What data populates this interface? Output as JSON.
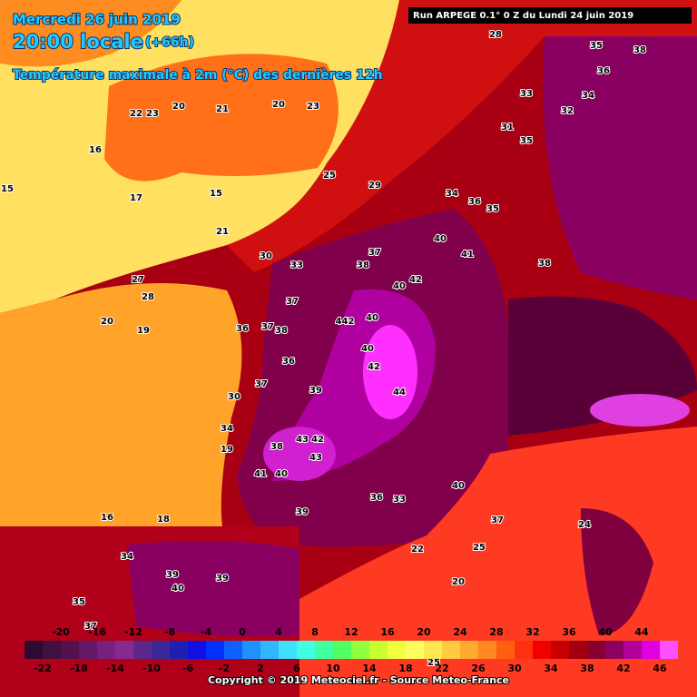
{
  "header": {
    "date": "Mercredi 26 juin 2019",
    "time": "20:00 locale",
    "lead": "(+66h)",
    "field": "Température maximale à 2m (°C) des dernières 12h",
    "run": "Run ARPEGE 0.1° 0 Z du Lundi 24 juin 2019"
  },
  "legend": {
    "labels_top": [
      "-20",
      "-16",
      "-12",
      "-8",
      "-4",
      "0",
      "4",
      "8",
      "12",
      "16",
      "20",
      "24",
      "28",
      "32",
      "36",
      "40",
      "44"
    ],
    "labels_bottom": [
      "-22",
      "-18",
      "-14",
      "-10",
      "-6",
      "-2",
      "2",
      "6",
      "10",
      "14",
      "18",
      "22",
      "26",
      "30",
      "34",
      "38",
      "42",
      "46"
    ],
    "colors": [
      "#2e0a30",
      "#40103f",
      "#52124f",
      "#641865",
      "#78207e",
      "#862a92",
      "#5a2888",
      "#3a2898",
      "#2020b0",
      "#1010e0",
      "#0030ff",
      "#1060ff",
      "#2090ff",
      "#30b8ff",
      "#40e0ff",
      "#40ffe0",
      "#40ffa0",
      "#50ff60",
      "#90ff40",
      "#c8ff30",
      "#f0ff40",
      "#ffff60",
      "#ffe850",
      "#ffcc40",
      "#ffaa30",
      "#ff8820",
      "#ff6010",
      "#ff3010",
      "#f00000",
      "#c80000",
      "#a00010",
      "#880030",
      "#8c0060",
      "#b00098",
      "#e000e0",
      "#ff50ff"
    ]
  },
  "map": {
    "labels": [
      "28",
      "35",
      "38",
      "36",
      "33",
      "34",
      "32",
      "31",
      "35",
      "22",
      "23",
      "20",
      "21",
      "20",
      "23",
      "16",
      "15",
      "17",
      "15",
      "25",
      "29",
      "34",
      "36",
      "35",
      "21",
      "27",
      "28",
      "20",
      "19",
      "30",
      "33",
      "37",
      "38",
      "40",
      "41",
      "42",
      "40",
      "37",
      "36",
      "37",
      "38",
      "442",
      "40",
      "42",
      "44",
      "39",
      "36",
      "37",
      "30",
      "34",
      "19",
      "43",
      "42",
      "43",
      "41",
      "40",
      "39",
      "38",
      "36",
      "33",
      "40",
      "37",
      "22",
      "25",
      "24",
      "20",
      "25",
      "35",
      "34",
      "16",
      "18",
      "39",
      "40",
      "37",
      "39",
      "40",
      "38"
    ]
  },
  "footer": {
    "copyright": "Copyright © 2019 Meteociel.fr - Source Meteo-France"
  }
}
